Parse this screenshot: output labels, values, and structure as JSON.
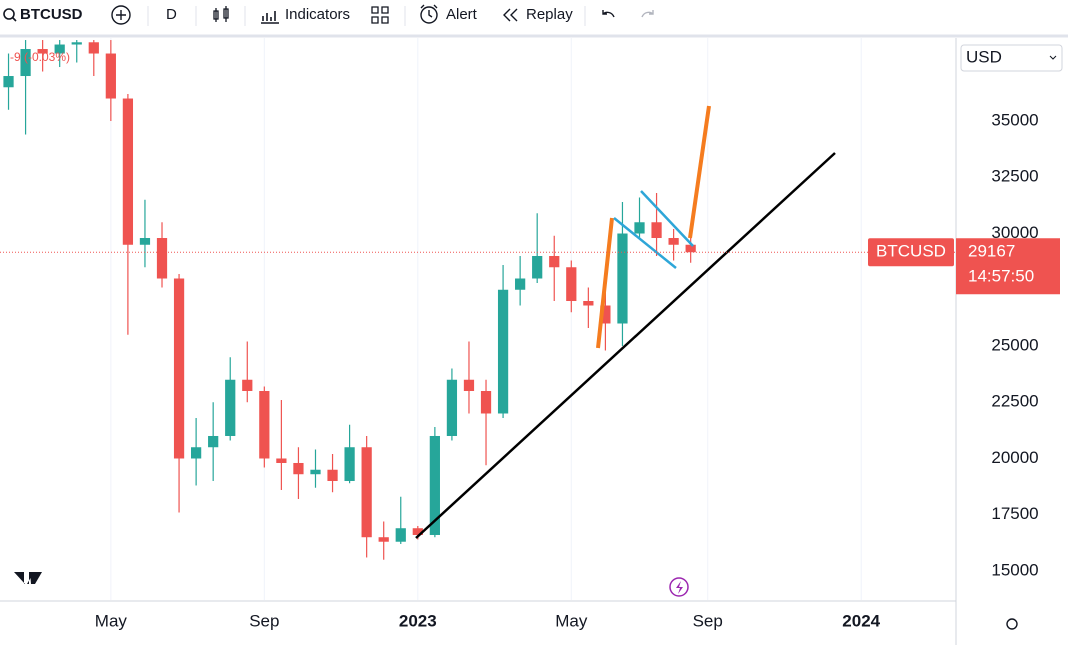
{
  "toolbar": {
    "symbol": "BTCUSD",
    "interval": "D",
    "items": [
      "Indicators",
      "Alert",
      "Replay"
    ]
  },
  "chart_data": {
    "type": "candlestick",
    "change": "-9 (-0.03%)",
    "currency": "USD",
    "last_price": 29167,
    "last_label": "BTCUSD",
    "countdown": "14:57:50",
    "up_color": "#26a69a",
    "down_color": "#ef5350",
    "grid": true,
    "categories": [
      null,
      null,
      null,
      null,
      null,
      null,
      "May",
      null,
      null,
      null,
      null,
      null,
      null,
      null,
      null,
      "Sep",
      null,
      null,
      null,
      null,
      null,
      null,
      null,
      null,
      "2023",
      null,
      null,
      null,
      null,
      null,
      null,
      null,
      null,
      "May",
      null,
      null,
      null,
      null,
      null,
      null,
      null,
      "Sep",
      null,
      null,
      null,
      null,
      null,
      null,
      null,
      null,
      "2024",
      null,
      null,
      null,
      null,
      null
    ],
    "open": [
      36500,
      37000,
      38200,
      38000,
      38400,
      38500,
      38000,
      36000,
      29500,
      29800,
      28000,
      20000,
      20500,
      21000,
      23500,
      23000,
      20000,
      19800,
      19300,
      19500,
      19000,
      20500,
      16500,
      16300,
      16900,
      16600,
      21000,
      23500,
      23000,
      22000,
      27500,
      28000,
      29000,
      28500,
      27000,
      26800,
      26000,
      30000,
      30500,
      29800,
      29500,
      null,
      null,
      null,
      null,
      null,
      null,
      null,
      null,
      null,
      null,
      null,
      null,
      null,
      null,
      null
    ],
    "high": [
      38000,
      38600,
      38600,
      38600,
      38600,
      38600,
      38600,
      36200,
      31500,
      30500,
      28200,
      21800,
      22500,
      24500,
      25200,
      23200,
      22600,
      20500,
      20400,
      20200,
      21500,
      21000,
      17200,
      18300,
      17000,
      21400,
      24000,
      25200,
      23500,
      28600,
      29000,
      30900,
      29900,
      28800,
      27600,
      27400,
      31400,
      31600,
      31800,
      30200,
      29800,
      null,
      null,
      null,
      null,
      null,
      null,
      null,
      null,
      null,
      null,
      null,
      null,
      null,
      null,
      null
    ],
    "low": [
      35500,
      34400,
      37200,
      37400,
      37600,
      37000,
      35000,
      25500,
      28500,
      27600,
      17600,
      18800,
      19000,
      20800,
      22500,
      19600,
      18600,
      18200,
      18700,
      18500,
      18900,
      15600,
      15500,
      16200,
      16400,
      16500,
      20800,
      22000,
      19700,
      21800,
      26800,
      27800,
      27000,
      26500,
      25800,
      24800,
      25000,
      29800,
      29000,
      28800,
      28700,
      null,
      null,
      null,
      null,
      null,
      null,
      null,
      null,
      null,
      null,
      null,
      null,
      null,
      null,
      null
    ],
    "close": [
      37000,
      38200,
      38000,
      38400,
      38500,
      38000,
      36000,
      29500,
      29800,
      28000,
      20000,
      20500,
      21000,
      23500,
      23000,
      20000,
      19800,
      19300,
      19500,
      19000,
      20500,
      16500,
      16300,
      16900,
      16600,
      21000,
      23500,
      23000,
      22000,
      27500,
      28000,
      29000,
      28500,
      27000,
      26800,
      26000,
      30000,
      30500,
      29800,
      29500,
      29167,
      null,
      null,
      null,
      null,
      null,
      null,
      null,
      null,
      null,
      null,
      null,
      null,
      null,
      null,
      null
    ],
    "ylim": [
      13710,
      38690
    ],
    "yticks": [
      15000,
      17500,
      20000,
      22500,
      25000,
      27500,
      30000,
      32500,
      35000
    ]
  }
}
